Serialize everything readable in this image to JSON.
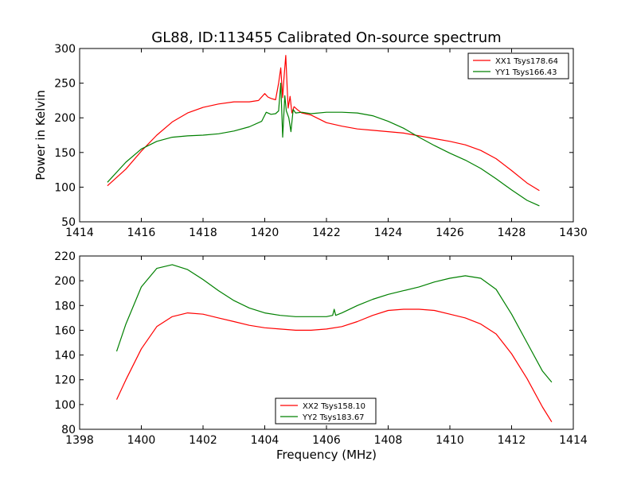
{
  "figure": {
    "title": "GL88, ID:113455 Calibrated On-source spectrum",
    "xlabel": "Frequency (MHz)"
  },
  "chart_data": [
    {
      "type": "line",
      "name": "top",
      "title": "",
      "xlabel": "",
      "ylabel": "Power in Kelvin",
      "xlim": [
        1414,
        1430
      ],
      "ylim": [
        50,
        300
      ],
      "xticks": [
        1414,
        1416,
        1418,
        1420,
        1422,
        1424,
        1426,
        1428,
        1430
      ],
      "yticks": [
        50,
        100,
        150,
        200,
        250,
        300
      ],
      "grid": false,
      "legend": "top-right",
      "series": [
        {
          "name": "XX1 Tsys178.64",
          "color": "#ff0000",
          "x": [
            1414.9,
            1415.5,
            1416.0,
            1416.5,
            1417.0,
            1417.5,
            1418.0,
            1418.5,
            1419.0,
            1419.5,
            1419.8,
            1420.0,
            1420.1,
            1420.2,
            1420.35,
            1420.45,
            1420.52,
            1420.58,
            1420.62,
            1420.68,
            1420.72,
            1420.76,
            1420.82,
            1420.88,
            1420.95,
            1421.05,
            1421.2,
            1421.5,
            1422.0,
            1422.5,
            1423.0,
            1423.5,
            1424.0,
            1424.5,
            1425.0,
            1425.5,
            1426.0,
            1426.5,
            1427.0,
            1427.5,
            1428.0,
            1428.5,
            1428.9
          ],
          "y": [
            102,
            126,
            152,
            175,
            194,
            207,
            215,
            220,
            223,
            223,
            225,
            235,
            230,
            228,
            226,
            250,
            272,
            229,
            255,
            290,
            250,
            214,
            231,
            207,
            216,
            212,
            207,
            204,
            193,
            188,
            184,
            182,
            180,
            178,
            174,
            170,
            166,
            161,
            153,
            141,
            124,
            106,
            95
          ]
        },
        {
          "name": "YY1 Tsys166.43",
          "color": "#008000",
          "x": [
            1414.9,
            1415.5,
            1416.0,
            1416.5,
            1417.0,
            1417.5,
            1418.0,
            1418.5,
            1419.0,
            1419.5,
            1419.9,
            1420.05,
            1420.2,
            1420.35,
            1420.45,
            1420.52,
            1420.58,
            1420.65,
            1420.7,
            1420.78,
            1420.85,
            1420.92,
            1421.0,
            1421.2,
            1421.5,
            1422.0,
            1422.5,
            1423.0,
            1423.5,
            1424.0,
            1424.5,
            1425.0,
            1425.5,
            1426.0,
            1426.5,
            1427.0,
            1427.5,
            1428.0,
            1428.5,
            1428.9
          ],
          "y": [
            107,
            136,
            155,
            166,
            172,
            174,
            175,
            177,
            181,
            187,
            195,
            208,
            205,
            206,
            210,
            250,
            172,
            232,
            210,
            200,
            180,
            212,
            207,
            208,
            206,
            208,
            208,
            207,
            203,
            195,
            185,
            172,
            160,
            149,
            139,
            127,
            112,
            96,
            81,
            73
          ]
        }
      ]
    },
    {
      "type": "line",
      "name": "bottom",
      "title": "",
      "xlabel": "Frequency (MHz)",
      "ylabel": "",
      "xlim": [
        1398,
        1414
      ],
      "ylim": [
        80,
        220
      ],
      "xticks": [
        1398,
        1400,
        1402,
        1404,
        1406,
        1408,
        1410,
        1412,
        1414
      ],
      "yticks": [
        80,
        100,
        120,
        140,
        160,
        180,
        200,
        220
      ],
      "grid": false,
      "legend": "bottom-center",
      "series": [
        {
          "name": "XX2 Tsys158.10",
          "color": "#ff0000",
          "x": [
            1399.2,
            1399.5,
            1400.0,
            1400.5,
            1401.0,
            1401.5,
            1402.0,
            1402.5,
            1403.0,
            1403.5,
            1404.0,
            1404.5,
            1405.0,
            1405.5,
            1406.0,
            1406.5,
            1407.0,
            1407.5,
            1408.0,
            1408.5,
            1409.0,
            1409.5,
            1410.0,
            1410.5,
            1411.0,
            1411.5,
            1412.0,
            1412.5,
            1413.0,
            1413.3
          ],
          "y": [
            104,
            120,
            145,
            163,
            171,
            174,
            173,
            170,
            167,
            164,
            162,
            161,
            160,
            160,
            161,
            163,
            167,
            172,
            176,
            177,
            177,
            176,
            173,
            170,
            165,
            157,
            141,
            121,
            98,
            86
          ]
        },
        {
          "name": "YY2 Tsys183.67",
          "color": "#008000",
          "x": [
            1399.2,
            1399.5,
            1400.0,
            1400.5,
            1401.0,
            1401.5,
            1402.0,
            1402.5,
            1403.0,
            1403.5,
            1404.0,
            1404.5,
            1405.0,
            1405.5,
            1406.0,
            1406.2,
            1406.25,
            1406.3,
            1406.5,
            1407.0,
            1407.5,
            1408.0,
            1408.5,
            1409.0,
            1409.5,
            1410.0,
            1410.5,
            1411.0,
            1411.5,
            1412.0,
            1412.5,
            1413.0,
            1413.3
          ],
          "y": [
            143,
            165,
            195,
            210,
            213,
            209,
            201,
            192,
            184,
            178,
            174,
            172,
            171,
            171,
            171,
            172,
            177,
            172,
            174,
            180,
            185,
            189,
            192,
            195,
            199,
            202,
            204,
            202,
            193,
            173,
            150,
            127,
            118
          ]
        }
      ]
    }
  ]
}
